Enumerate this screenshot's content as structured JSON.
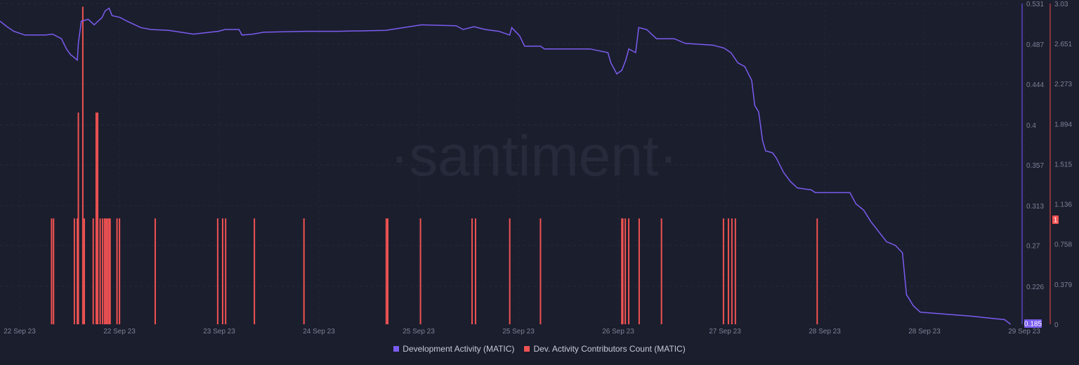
{
  "watermark": "·santiment·",
  "chart_data": {
    "type": "line+bar",
    "xlim": [
      "2023-09-22 00:00",
      "2023-09-29 02:00"
    ],
    "x_tick_labels": [
      "22 Sep 23",
      "22 Sep 23",
      "23 Sep 23",
      "24 Sep 23",
      "25 Sep 23",
      "25 Sep 23",
      "26 Sep 23",
      "27 Sep 23",
      "28 Sep 23",
      "28 Sep 23",
      "29 Sep 23"
    ],
    "y_left": {
      "ticks": [
        "0.531",
        "0.487",
        "0.444",
        "0.4",
        "0.357",
        "0.313",
        "0.27",
        "0.226"
      ],
      "range": [
        0.185,
        0.531
      ],
      "current_value_label": "0.185",
      "color": "#7b5cf0"
    },
    "y_right": {
      "ticks": [
        "3.03",
        "2.651",
        "2.273",
        "1.894",
        "1.515",
        "1.136",
        "0.758",
        "0.379",
        "0"
      ],
      "range": [
        0,
        3.03
      ],
      "current_value_label": "1",
      "color": "#f05252"
    },
    "grid": true,
    "legend_position": "bottom",
    "series": [
      {
        "name": "Development Activity (MATIC)",
        "type": "line",
        "axis": "left",
        "color": "#7b5cf0",
        "points": [
          [
            "09-22 00:00",
            0.512
          ],
          [
            "09-22 01:10",
            0.506
          ],
          [
            "09-22 02:20",
            0.501
          ],
          [
            "09-22 04:10",
            0.497
          ],
          [
            "09-22 07:40",
            0.497
          ],
          [
            "09-22 08:50",
            0.498
          ],
          [
            "09-22 10:20",
            0.493
          ],
          [
            "09-22 11:10",
            0.482
          ],
          [
            "09-22 11:50",
            0.476
          ],
          [
            "09-22 13:00",
            0.47
          ],
          [
            "09-22 13:10",
            0.488
          ],
          [
            "09-22 13:40",
            0.512
          ],
          [
            "09-22 14:50",
            0.514
          ],
          [
            "09-22 15:50",
            0.508
          ],
          [
            "09-22 17:10",
            0.516
          ],
          [
            "09-22 17:40",
            0.523
          ],
          [
            "09-22 18:20",
            0.526
          ],
          [
            "09-22 18:50",
            0.518
          ],
          [
            "09-22 20:10",
            0.516
          ],
          [
            "09-22 21:20",
            0.512
          ],
          [
            "09-22 23:40",
            0.505
          ],
          [
            "09-23 01:20",
            0.503
          ],
          [
            "09-23 04:20",
            0.502
          ],
          [
            "09-23 08:30",
            0.498
          ],
          [
            "09-23 12:40",
            0.501
          ],
          [
            "09-23 13:50",
            0.503
          ],
          [
            "09-23 16:10",
            0.503
          ],
          [
            "09-23 16:40",
            0.497
          ],
          [
            "09-23 18:30",
            0.498
          ],
          [
            "09-23 20:20",
            0.5
          ],
          [
            "09-24 03:20",
            0.501
          ],
          [
            "09-24 08:40",
            0.501
          ],
          [
            "09-24 16:50",
            0.502
          ],
          [
            "09-24 22:50",
            0.508
          ],
          [
            "09-25 04:40",
            0.507
          ],
          [
            "09-25 05:50",
            0.503
          ],
          [
            "09-25 07:40",
            0.506
          ],
          [
            "09-25 09:30",
            0.503
          ],
          [
            "09-25 11:50",
            0.501
          ],
          [
            "09-25 13:40",
            0.497
          ],
          [
            "09-25 14:00",
            0.505
          ],
          [
            "09-25 15:20",
            0.496
          ],
          [
            "09-25 16:10",
            0.485
          ],
          [
            "09-25 18:50",
            0.485
          ],
          [
            "09-25 19:30",
            0.482
          ],
          [
            "09-26 03:10",
            0.482
          ],
          [
            "09-26 06:10",
            0.478
          ],
          [
            "09-26 06:40",
            0.467
          ],
          [
            "09-26 07:40",
            0.455
          ],
          [
            "09-26 08:30",
            0.459
          ],
          [
            "09-26 09:10",
            0.47
          ],
          [
            "09-26 09:40",
            0.482
          ],
          [
            "09-26 10:50",
            0.478
          ],
          [
            "09-26 11:20",
            0.505
          ],
          [
            "09-26 12:40",
            0.503
          ],
          [
            "09-26 14:20",
            0.493
          ],
          [
            "09-26 17:20",
            0.493
          ],
          [
            "09-26 19:10",
            0.488
          ],
          [
            "09-26 23:50",
            0.486
          ],
          [
            "09-27 01:40",
            0.483
          ],
          [
            "09-27 02:50",
            0.478
          ],
          [
            "09-27 04:00",
            0.467
          ],
          [
            "09-27 05:10",
            0.463
          ],
          [
            "09-27 06:20",
            0.448
          ],
          [
            "09-27 06:50",
            0.421
          ],
          [
            "09-27 07:30",
            0.414
          ],
          [
            "09-27 08:10",
            0.383
          ],
          [
            "09-27 08:40",
            0.372
          ],
          [
            "09-27 09:50",
            0.37
          ],
          [
            "09-27 10:30",
            0.364
          ],
          [
            "09-27 11:40",
            0.349
          ],
          [
            "09-27 12:50",
            0.339
          ],
          [
            "09-27 14:00",
            0.332
          ],
          [
            "09-27 16:20",
            0.33
          ],
          [
            "09-27 17:00",
            0.327
          ],
          [
            "09-27 22:50",
            0.327
          ],
          [
            "09-27 23:50",
            0.315
          ],
          [
            "09-28 01:10",
            0.308
          ],
          [
            "09-28 02:20",
            0.296
          ],
          [
            "09-28 03:40",
            0.285
          ],
          [
            "09-28 05:00",
            0.274
          ],
          [
            "09-28 06:30",
            0.27
          ],
          [
            "09-28 07:40",
            0.262
          ],
          [
            "09-28 08:20",
            0.217
          ],
          [
            "09-28 09:30",
            0.205
          ],
          [
            "09-28 10:40",
            0.198
          ],
          [
            "09-28 18:50",
            0.194
          ],
          [
            "09-29 00:50",
            0.19
          ],
          [
            "09-29 01:50",
            0.185
          ]
        ]
      },
      {
        "name": "Dev. Activity Contributors Count (MATIC)",
        "type": "bar",
        "axis": "right",
        "color": "#f05252",
        "points": [
          [
            "09-22 08:40",
            1
          ],
          [
            "09-22 09:00",
            1
          ],
          [
            "09-22 12:30",
            1
          ],
          [
            "09-22 13:00",
            1
          ],
          [
            "09-22 13:10",
            2
          ],
          [
            "09-22 13:55",
            3
          ],
          [
            "09-22 14:10",
            1
          ],
          [
            "09-22 15:40",
            1
          ],
          [
            "09-22 16:10",
            2
          ],
          [
            "09-22 16:25",
            2
          ],
          [
            "09-22 16:50",
            1
          ],
          [
            "09-22 17:15",
            1
          ],
          [
            "09-22 17:35",
            1
          ],
          [
            "09-22 17:50",
            1
          ],
          [
            "09-22 18:05",
            1
          ],
          [
            "09-22 18:20",
            1
          ],
          [
            "09-22 18:30",
            1
          ],
          [
            "09-22 19:40",
            1
          ],
          [
            "09-22 20:05",
            1
          ],
          [
            "09-23 02:05",
            1
          ],
          [
            "09-23 12:35",
            1
          ],
          [
            "09-23 13:25",
            1
          ],
          [
            "09-23 13:55",
            1
          ],
          [
            "09-23 18:45",
            1
          ],
          [
            "09-24 03:05",
            1
          ],
          [
            "09-24 16:55",
            1
          ],
          [
            "09-24 17:10",
            1
          ],
          [
            "09-24 22:40",
            1
          ],
          [
            "09-25 07:20",
            1
          ],
          [
            "09-25 07:55",
            1
          ],
          [
            "09-25 13:40",
            1
          ],
          [
            "09-25 18:50",
            1
          ],
          [
            "09-26 08:30",
            1
          ],
          [
            "09-26 08:40",
            1
          ],
          [
            "09-26 09:05",
            1
          ],
          [
            "09-26 09:40",
            1
          ],
          [
            "09-26 11:25",
            1
          ],
          [
            "09-26 15:10",
            1
          ],
          [
            "09-27 01:35",
            1
          ],
          [
            "09-27 02:25",
            1
          ],
          [
            "09-27 03:00",
            1
          ],
          [
            "09-27 03:35",
            1
          ],
          [
            "09-27 17:20",
            1
          ]
        ]
      }
    ]
  }
}
